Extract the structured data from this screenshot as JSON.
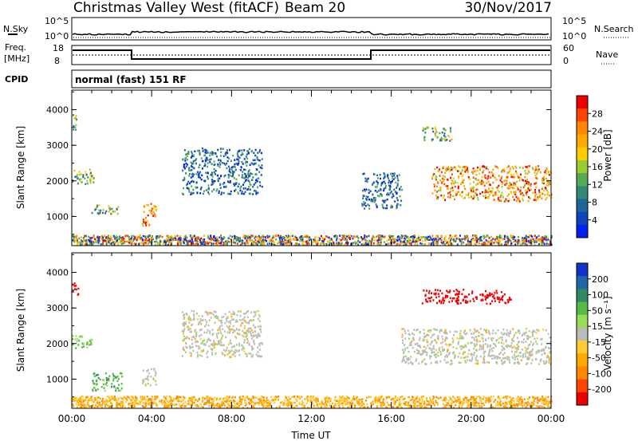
{
  "header": {
    "station": "Christmas Valley West (fitACF)",
    "beam": "Beam 20",
    "date": "30/Nov/2017"
  },
  "panels": {
    "nsky": {
      "label": "N.Sky",
      "top_tick": "10^5",
      "bottom_tick": "10^0"
    },
    "nsearch": {
      "label": "N.Search",
      "top_tick": "10^5",
      "bottom_tick": "10^0"
    },
    "freq": {
      "label_line1": "Freq.",
      "label_line2": "[MHz]",
      "ticks": [
        "18",
        "8"
      ]
    },
    "nave": {
      "label": "Nave",
      "ticks": [
        "60",
        "0"
      ]
    },
    "cpid": {
      "label": "CPID",
      "value": "normal (fast) 151 RF"
    }
  },
  "colorbars": {
    "power": {
      "label": "Power [dB]",
      "ticks": [
        "28",
        "24",
        "20",
        "16",
        "12",
        "8",
        "4"
      ],
      "colors": [
        "#ee0000",
        "#ff4400",
        "#ff8800",
        "#ffaa00",
        "#ffcc00",
        "#99cc33",
        "#55aa55",
        "#338877",
        "#226699",
        "#1144bb",
        "#0022ee"
      ]
    },
    "velocity": {
      "label": "Velocity [m s⁻¹]",
      "ticks": [
        "200",
        "100",
        "50",
        "15",
        "-15",
        "-50",
        "-100",
        "-200"
      ],
      "colors": [
        "#1133cc",
        "#2266aa",
        "#338866",
        "#55bb44",
        "#99dd55",
        "#bbbbbb",
        "#ffcc33",
        "#ffaa00",
        "#ff8800",
        "#ff4400",
        "#ee0000"
      ]
    }
  },
  "chart_data": [
    {
      "type": "heatmap",
      "panel": "power",
      "ylabel": "Slant Range [km]",
      "xlabel": "",
      "ylim": [
        180,
        4550
      ],
      "yticks": [
        "4000",
        "3000",
        "2000",
        "1000"
      ],
      "xticks": [
        "00:00",
        "04:00",
        "08:00",
        "12:00",
        "16:00",
        "20:00",
        "00:00"
      ],
      "xlim_hours": [
        0,
        24
      ],
      "features": [
        {
          "t0": 0.0,
          "t1": 0.2,
          "r0": 3300,
          "r1": 3900,
          "level": "mid"
        },
        {
          "t0": 0.0,
          "t1": 1.1,
          "r0": 1850,
          "r1": 2300,
          "level": "mid"
        },
        {
          "t0": 0.8,
          "t1": 2.3,
          "r0": 1050,
          "r1": 1300,
          "level": "mid"
        },
        {
          "t0": 3.5,
          "t1": 4.2,
          "r0": 700,
          "r1": 1400,
          "level": "high"
        },
        {
          "t0": 5.5,
          "t1": 9.5,
          "r0": 1600,
          "r1": 2900,
          "level": "low"
        },
        {
          "t0": 14.5,
          "t1": 16.5,
          "r0": 1200,
          "r1": 2200,
          "level": "low"
        },
        {
          "t0": 17.5,
          "t1": 19.0,
          "r0": 3100,
          "r1": 3500,
          "level": "mid"
        },
        {
          "t0": 18.0,
          "t1": 24.0,
          "r0": 1400,
          "r1": 2400,
          "level": "high"
        },
        {
          "t0": 0.0,
          "t1": 24.0,
          "r0": 180,
          "r1": 450,
          "level": "mixed"
        }
      ]
    },
    {
      "type": "heatmap",
      "panel": "velocity",
      "ylabel": "Slant Range [km]",
      "xlabel": "Time UT",
      "ylim": [
        180,
        4550
      ],
      "yticks": [
        "4000",
        "3000",
        "2000",
        "1000"
      ],
      "xticks": [
        "00:00",
        "04:00",
        "08:00",
        "12:00",
        "16:00",
        "20:00",
        "00:00"
      ],
      "xlim_hours": [
        0,
        24
      ],
      "features": [
        {
          "t0": 0.0,
          "t1": 0.3,
          "r0": 3300,
          "r1": 3700,
          "vel": -200
        },
        {
          "t0": 0.0,
          "t1": 1.0,
          "r0": 1850,
          "r1": 2200,
          "vel": 30
        },
        {
          "t0": 1.0,
          "t1": 2.5,
          "r0": 650,
          "r1": 1150,
          "vel": 40
        },
        {
          "t0": 3.5,
          "t1": 4.2,
          "r0": 800,
          "r1": 1300,
          "vel": 0
        },
        {
          "t0": 5.5,
          "t1": 9.5,
          "r0": 1600,
          "r1": 2900,
          "vel": 0
        },
        {
          "t0": 17.5,
          "t1": 22.0,
          "r0": 3100,
          "r1": 3500,
          "vel": -200
        },
        {
          "t0": 16.5,
          "t1": 24.0,
          "r0": 1400,
          "r1": 2400,
          "vel": 0
        },
        {
          "t0": 0.0,
          "t1": 24.0,
          "r0": 180,
          "r1": 500,
          "vel": -40
        }
      ]
    }
  ]
}
